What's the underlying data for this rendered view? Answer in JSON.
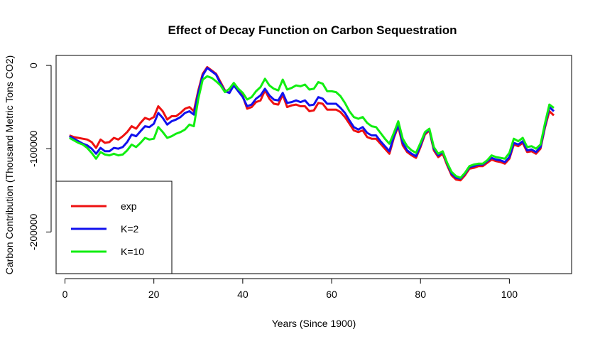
{
  "chart_data": {
    "type": "line",
    "title": "Effect of Decay Function on Carbon Sequestration",
    "xlabel": "Years (Since 1900)",
    "ylabel": "Carbon Contribution (Thousand Metric Tons CO2)",
    "xlim": [
      -2,
      114
    ],
    "ylim": [
      -250000,
      12000
    ],
    "x_ticks": [
      0,
      20,
      40,
      60,
      80,
      100
    ],
    "y_ticks": [
      0,
      -100000,
      -200000
    ],
    "y_tick_labels": [
      "0",
      "-100000",
      "-200000"
    ],
    "legend_position": "bottom-left",
    "x": [
      1,
      2,
      3,
      4,
      5,
      6,
      7,
      8,
      9,
      10,
      11,
      12,
      13,
      14,
      15,
      16,
      17,
      18,
      19,
      20,
      21,
      22,
      23,
      24,
      25,
      26,
      27,
      28,
      29,
      30,
      31,
      32,
      33,
      34,
      35,
      36,
      37,
      38,
      39,
      40,
      41,
      42,
      43,
      44,
      45,
      46,
      47,
      48,
      49,
      50,
      51,
      52,
      53,
      54,
      55,
      56,
      57,
      58,
      59,
      60,
      61,
      62,
      63,
      64,
      65,
      66,
      67,
      68,
      69,
      70,
      71,
      72,
      73,
      74,
      75,
      76,
      77,
      78,
      79,
      80,
      81,
      82,
      83,
      84,
      85,
      86,
      87,
      88,
      89,
      90,
      91,
      92,
      93,
      94,
      95,
      96,
      97,
      98,
      99,
      100,
      101,
      102,
      103,
      104,
      105,
      106,
      107,
      108,
      109,
      110
    ],
    "series": [
      {
        "name": "exp",
        "color": "#ee1111",
        "values": [
          -84000,
          -86000,
          -87000,
          -88000,
          -89000,
          -92000,
          -99000,
          -89000,
          -93000,
          -92000,
          -87000,
          -89000,
          -85000,
          -80000,
          -73000,
          -76000,
          -69000,
          -63000,
          -65000,
          -62000,
          -49000,
          -55000,
          -65000,
          -61000,
          -61000,
          -57000,
          -52000,
          -50000,
          -55000,
          -30000,
          -10000,
          -2000,
          -6000,
          -10000,
          -20000,
          -30000,
          -33000,
          -22000,
          -30000,
          -37000,
          -52000,
          -50000,
          -44000,
          -42000,
          -30000,
          -40000,
          -46000,
          -47000,
          -35000,
          -50000,
          -48000,
          -47000,
          -49000,
          -49000,
          -55000,
          -54000,
          -45000,
          -46000,
          -53000,
          -53000,
          -53000,
          -56000,
          -62000,
          -70000,
          -78000,
          -80000,
          -78000,
          -86000,
          -88000,
          -88000,
          -94000,
          -100000,
          -106000,
          -87000,
          -73000,
          -96000,
          -104000,
          -108000,
          -111000,
          -98000,
          -83000,
          -78000,
          -102000,
          -110000,
          -106000,
          -120000,
          -132000,
          -137000,
          -138000,
          -132000,
          -124000,
          -123000,
          -121000,
          -121000,
          -117000,
          -113000,
          -115000,
          -116000,
          -118000,
          -112000,
          -95000,
          -97000,
          -93000,
          -104000,
          -103000,
          -106000,
          -100000,
          -75000,
          -55000,
          -60000
        ]
      },
      {
        "name": "K=2",
        "color": "#1111ee",
        "values": [
          -85000,
          -88000,
          -91000,
          -94000,
          -96000,
          -100000,
          -106000,
          -99000,
          -103000,
          -103000,
          -99000,
          -100000,
          -98000,
          -92000,
          -83000,
          -85000,
          -79000,
          -73000,
          -74000,
          -70000,
          -57000,
          -63000,
          -71000,
          -67000,
          -65000,
          -62000,
          -57000,
          -55000,
          -59000,
          -33000,
          -12000,
          -3000,
          -7000,
          -11000,
          -22000,
          -31000,
          -33000,
          -24000,
          -31000,
          -38000,
          -49000,
          -47000,
          -40000,
          -36000,
          -28000,
          -36000,
          -41000,
          -42000,
          -33000,
          -45000,
          -44000,
          -42000,
          -44000,
          -42000,
          -48000,
          -47000,
          -38000,
          -40000,
          -46000,
          -46000,
          -46000,
          -51000,
          -57000,
          -66000,
          -74000,
          -77000,
          -74000,
          -81000,
          -84000,
          -84000,
          -91000,
          -97000,
          -103000,
          -85000,
          -71000,
          -93000,
          -102000,
          -106000,
          -109000,
          -96000,
          -81000,
          -77000,
          -100000,
          -108000,
          -104000,
          -118000,
          -130000,
          -135000,
          -136000,
          -130000,
          -122000,
          -121000,
          -119000,
          -119000,
          -115000,
          -111000,
          -113000,
          -114000,
          -116000,
          -110000,
          -93000,
          -95000,
          -91000,
          -102000,
          -101000,
          -104000,
          -98000,
          -73000,
          -50000,
          -55000
        ]
      },
      {
        "name": "K=10",
        "color": "#11ee11",
        "values": [
          -87000,
          -90000,
          -93000,
          -95000,
          -99000,
          -105000,
          -112000,
          -104000,
          -107000,
          -108000,
          -106000,
          -108000,
          -107000,
          -102000,
          -95000,
          -98000,
          -93000,
          -87000,
          -89000,
          -88000,
          -74000,
          -80000,
          -87000,
          -85000,
          -82000,
          -80000,
          -77000,
          -71000,
          -73000,
          -40000,
          -17000,
          -13000,
          -15000,
          -19000,
          -24000,
          -32000,
          -28000,
          -21000,
          -28000,
          -33000,
          -41000,
          -38000,
          -31000,
          -26000,
          -16000,
          -24000,
          -28000,
          -30000,
          -17000,
          -29000,
          -27000,
          -24000,
          -25000,
          -23000,
          -29000,
          -28000,
          -20000,
          -22000,
          -31000,
          -31000,
          -32000,
          -37000,
          -45000,
          -55000,
          -62000,
          -64000,
          -62000,
          -69000,
          -73000,
          -74000,
          -81000,
          -88000,
          -94000,
          -81000,
          -67000,
          -88000,
          -97000,
          -102000,
          -105000,
          -93000,
          -80000,
          -76000,
          -98000,
          -106000,
          -103000,
          -117000,
          -128000,
          -133000,
          -135000,
          -129000,
          -121000,
          -119000,
          -118000,
          -118000,
          -114000,
          -108000,
          -110000,
          -111000,
          -112000,
          -105000,
          -88000,
          -91000,
          -87000,
          -98000,
          -97000,
          -100000,
          -95000,
          -70000,
          -47000,
          -51000
        ]
      }
    ]
  }
}
